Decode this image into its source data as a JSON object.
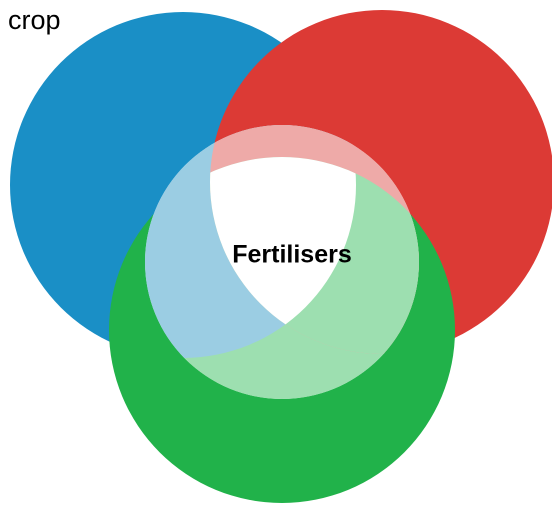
{
  "corner_label": "crop",
  "center_label": "Fertilisers"
}
